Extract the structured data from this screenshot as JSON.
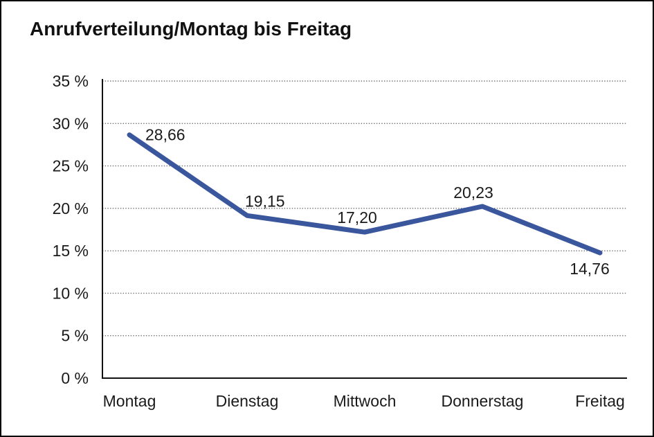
{
  "chart_data": {
    "type": "line",
    "title": "Anrufverteilung/Montag bis Freitag",
    "categories": [
      "Montag",
      "Dienstag",
      "Mittwoch",
      "Donnerstag",
      "Freitag"
    ],
    "series": [
      {
        "name": "Anrufverteilung",
        "values": [
          28.66,
          19.15,
          17.2,
          20.23,
          14.76
        ],
        "value_labels": [
          "28,66",
          "19,15",
          "17,20",
          "20,23",
          "14,76"
        ]
      }
    ],
    "xlabel": "",
    "ylabel": "",
    "ylim": [
      0,
      35
    ],
    "ytick_step": 5,
    "ytick_labels": [
      "0 %",
      "5 %",
      "10 %",
      "15 %",
      "20 %",
      "25 %",
      "30 %",
      "35 %"
    ],
    "grid": "horizontal-dotted",
    "legend": "none",
    "colors": {
      "line": "#3A569D",
      "axis": "#111111",
      "gridline": "#6e6e6e",
      "text": "#1a1a1a",
      "title_text": "#111111",
      "background": "#ffffff",
      "frame_border": "#000000"
    }
  }
}
